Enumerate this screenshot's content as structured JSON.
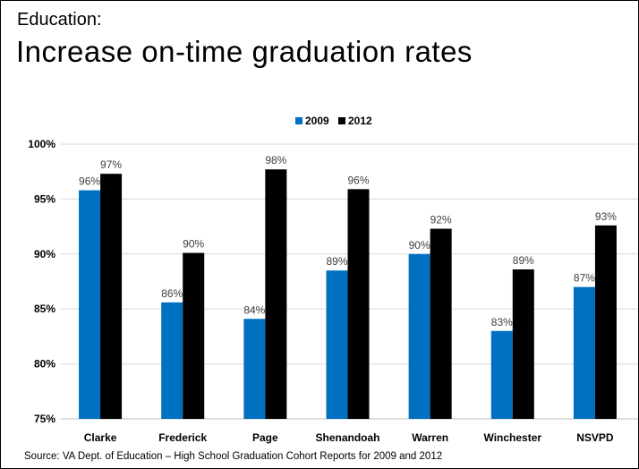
{
  "slide": {
    "heading": "Education:",
    "title": "Increase on-time graduation rates",
    "source": "Source: VA Dept. of Education – High School Graduation Cohort Reports for 2009 and 2012"
  },
  "chart_data": {
    "type": "bar",
    "title": "",
    "xlabel": "",
    "ylabel": "",
    "categories": [
      "Clarke",
      "Frederick",
      "Page",
      "Shenandoah",
      "Warren",
      "Winchester",
      "NSVPD"
    ],
    "series": [
      {
        "name": "2009",
        "color": "#0070C0",
        "values": [
          95.8,
          85.6,
          84.1,
          88.5,
          90.0,
          83.0,
          87.0
        ],
        "labels": [
          "96%",
          "86%",
          "84%",
          "89%",
          "90%",
          "83%",
          "87%"
        ]
      },
      {
        "name": "2012",
        "color": "#000000",
        "values": [
          97.3,
          90.1,
          97.7,
          95.9,
          92.3,
          88.6,
          92.6
        ],
        "labels": [
          "97%",
          "90%",
          "98%",
          "96%",
          "92%",
          "89%",
          "93%"
        ]
      }
    ],
    "ylim": [
      75,
      100
    ],
    "yticks": [
      75,
      80,
      85,
      90,
      95,
      100
    ],
    "ytick_labels": [
      "75%",
      "80%",
      "85%",
      "90%",
      "95%",
      "100%"
    ],
    "grid": true,
    "legend_position": "top-center"
  }
}
